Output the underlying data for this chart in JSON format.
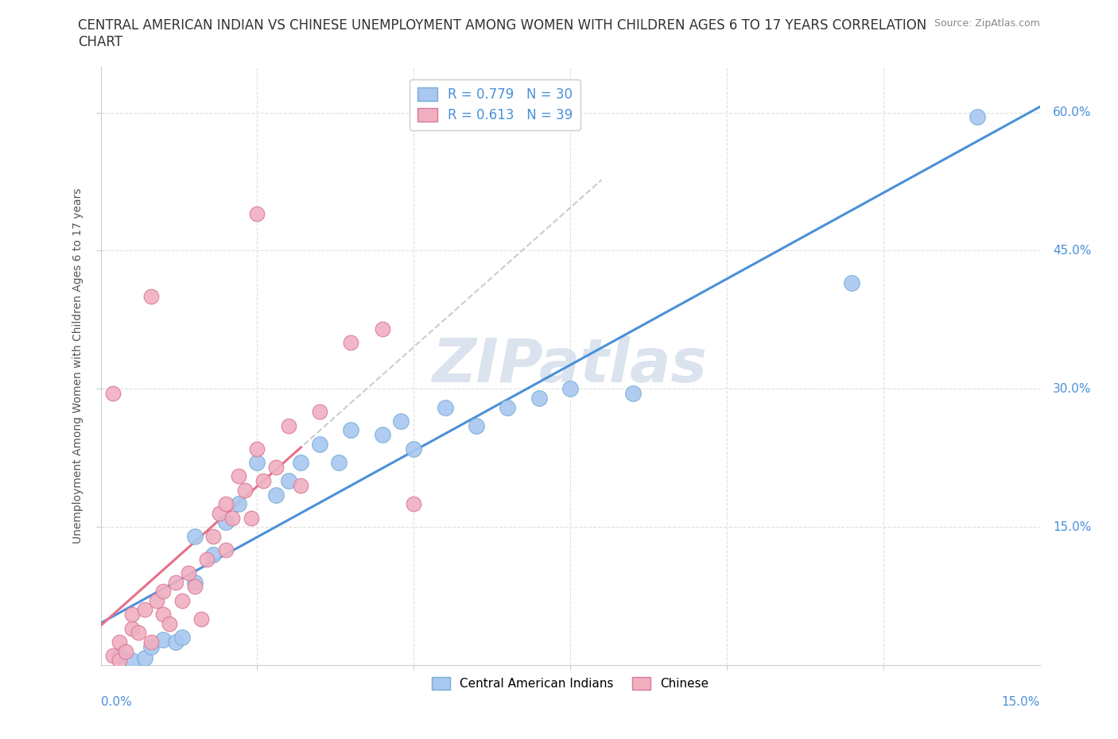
{
  "title_line1": "CENTRAL AMERICAN INDIAN VS CHINESE UNEMPLOYMENT AMONG WOMEN WITH CHILDREN AGES 6 TO 17 YEARS CORRELATION",
  "title_line2": "CHART",
  "source": "Source: ZipAtlas.com",
  "watermark": "ZIPatlas",
  "legend1_r": "0.779",
  "legend1_n": "30",
  "legend2_r": "0.613",
  "legend2_n": "39",
  "legend_bottom_label1": "Central American Indians",
  "legend_bottom_label2": "Chinese",
  "blue_color": "#a8c8f0",
  "blue_edge_color": "#7aadd4",
  "pink_color": "#f0b0c0",
  "pink_edge_color": "#d87898",
  "blue_line_color": "#4a90d9",
  "pink_line_color": "#e8708a",
  "dashed_line_color": "#cccccc",
  "blue_x": [
    0.003,
    0.005,
    0.007,
    0.008,
    0.01,
    0.012,
    0.013,
    0.015,
    0.015,
    0.018,
    0.02,
    0.022,
    0.025,
    0.028,
    0.03,
    0.032,
    0.035,
    0.038,
    0.04,
    0.045,
    0.048,
    0.05,
    0.055,
    0.06,
    0.065,
    0.07,
    0.075,
    0.085,
    0.12,
    0.14
  ],
  "blue_y": [
    0.01,
    0.005,
    0.008,
    0.02,
    0.028,
    0.025,
    0.03,
    0.14,
    0.09,
    0.12,
    0.155,
    0.175,
    0.22,
    0.185,
    0.2,
    0.22,
    0.24,
    0.22,
    0.255,
    0.25,
    0.265,
    0.235,
    0.28,
    0.26,
    0.28,
    0.29,
    0.3,
    0.295,
    0.415,
    0.595
  ],
  "pink_x": [
    0.002,
    0.003,
    0.003,
    0.004,
    0.005,
    0.005,
    0.006,
    0.007,
    0.008,
    0.009,
    0.01,
    0.01,
    0.011,
    0.012,
    0.013,
    0.014,
    0.015,
    0.016,
    0.017,
    0.018,
    0.019,
    0.02,
    0.021,
    0.022,
    0.023,
    0.024,
    0.025,
    0.026,
    0.028,
    0.03,
    0.032,
    0.035,
    0.04,
    0.045,
    0.05,
    0.002,
    0.008,
    0.025,
    0.02
  ],
  "pink_y": [
    0.01,
    0.025,
    0.005,
    0.015,
    0.04,
    0.055,
    0.035,
    0.06,
    0.025,
    0.07,
    0.055,
    0.08,
    0.045,
    0.09,
    0.07,
    0.1,
    0.085,
    0.05,
    0.115,
    0.14,
    0.165,
    0.125,
    0.16,
    0.205,
    0.19,
    0.16,
    0.235,
    0.2,
    0.215,
    0.26,
    0.195,
    0.275,
    0.35,
    0.365,
    0.175,
    0.295,
    0.4,
    0.49,
    0.175
  ],
  "xlim": [
    0.0,
    0.15
  ],
  "ylim": [
    0.0,
    0.65
  ],
  "ylabel": "Unemployment Among Women with Children Ages 6 to 17 years",
  "title_fontsize": 12,
  "label_fontsize": 11,
  "source_fontsize": 9,
  "watermark_fontsize": 55,
  "watermark_color": "#ccd8e8",
  "axis_label_color": "#4a90d9",
  "title_color": "#333333",
  "ylabel_color": "#555555",
  "grid_color": "#e0e0e0",
  "spine_color": "#cccccc"
}
